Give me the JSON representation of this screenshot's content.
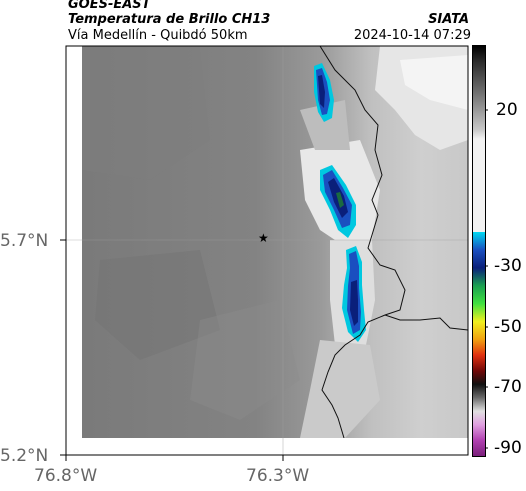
{
  "header": {
    "satellite": "GOES-EAST",
    "product": "Temperatura de Brillo CH13",
    "region": "Vía Medellín - Quibdó 50km",
    "agency": "SIATA",
    "datetime": "2024-10-14 07:29"
  },
  "map": {
    "y_ticks": [
      "5.7°N",
      "5.2°N"
    ],
    "x_ticks": [
      "76.8°W",
      "76.3°W"
    ],
    "marker_symbol": "★"
  },
  "colorbar": {
    "ticks": [
      "20",
      "-30",
      "-50",
      "-70",
      "-90"
    ]
  }
}
